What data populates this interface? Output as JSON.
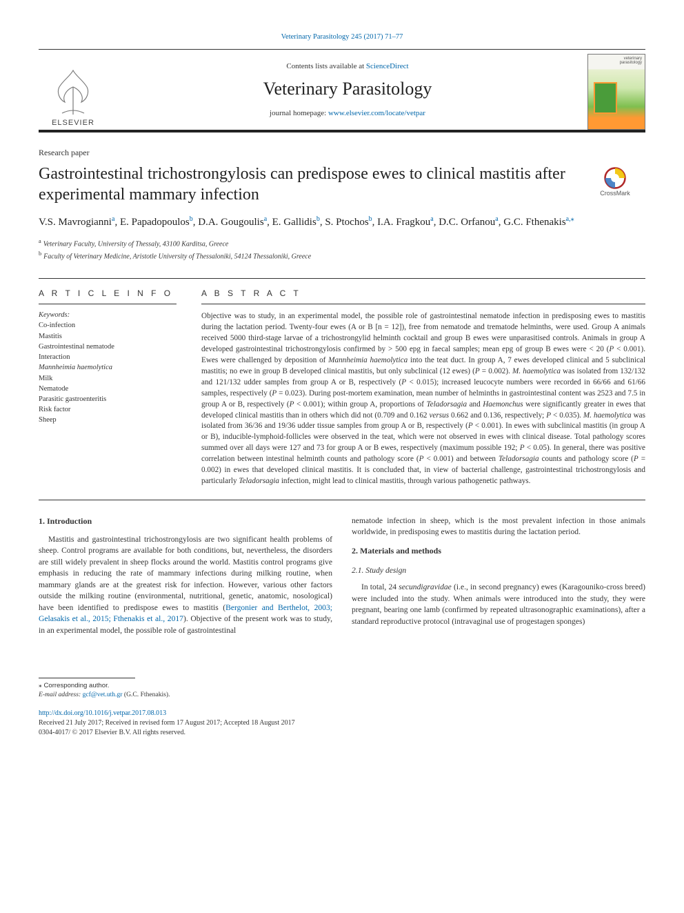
{
  "header": {
    "top_link_text": "Veterinary Parasitology 245 (2017) 71–77",
    "top_link_href": "#",
    "contents_prefix": "Contents lists available at ",
    "contents_link": "ScienceDirect",
    "journal_title": "Veterinary Parasitology",
    "homepage_prefix": "journal homepage: ",
    "homepage_link": "www.elsevier.com/locate/vetpar",
    "publisher_name": "ELSEVIER",
    "cover_label_top": "veterinary",
    "cover_label_bottom": "parasitology"
  },
  "paper": {
    "type": "Research paper",
    "title": "Gastrointestinal trichostrongylosis can predispose ewes to clinical mastitis after experimental mammary infection",
    "crossmark_label": "CrossMark",
    "authors_html": "V.S. Mavrogianni<sup><a href=\"#\">a</a></sup>, E. Papadopoulos<sup><a href=\"#\">b</a></sup>, D.A. Gougoulis<sup><a href=\"#\">a</a></sup>, E. Gallidis<sup><a href=\"#\">b</a></sup>, S. Ptochos<sup><a href=\"#\">b</a></sup>, I.A. Fragkou<sup><a href=\"#\">a</a></sup>, D.C. Orfanou<sup><a href=\"#\">a</a></sup>, G.C. Fthenakis<sup><a href=\"#\">a,</a></sup><sup><a href=\"#\">⁎</a></sup>",
    "affiliations": [
      {
        "key": "a",
        "text": "Veterinary Faculty, University of Thessaly, 43100 Karditsa, Greece"
      },
      {
        "key": "b",
        "text": "Faculty of Veterinary Medicine, Aristotle University of Thessaloniki, 54124 Thessaloniki, Greece"
      }
    ]
  },
  "article_info": {
    "head": "A R T I C L E  I N F O",
    "kw_label": "Keywords:",
    "keywords": [
      "Co-infection",
      "Mastitis",
      "Gastrointestinal nematode",
      "Interaction",
      "Mannheimia haemolytica",
      "Milk",
      "Nematode",
      "Parasitic gastroenteritis",
      "Risk factor",
      "Sheep"
    ],
    "italic_keywords": [
      "Mannheimia haemolytica"
    ]
  },
  "abstract": {
    "head": "A B S T R A C T",
    "text": "Objective was to study, in an experimental model, the possible role of gastrointestinal nematode infection in predisposing ewes to mastitis during the lactation period. Twenty-four ewes (A or B [n = 12]), free from nematode and trematode helminths, were used. Group A animals received 5000 third-stage larvae of a trichostrongylid helminth cocktail and group B ewes were unparasitised controls. Animals in group A developed gastrointestinal trichostrongylosis confirmed by > 500 epg in faecal samples; mean epg of group B ewes were < 20 (<em>P</em> < 0.001). Ewes were challenged by deposition of <em>Mannheimia haemolytica</em> into the teat duct. In group A, 7 ewes developed clinical and 5 subclinical mastitis; no ewe in group B developed clinical mastitis, but only subclinical (12 ewes) (<em>P</em> = 0.002). <em>M. haemolytica</em> was isolated from 132/132 and 121/132 udder samples from group A or B, respectively (<em>P</em> < 0.015); increased leucocyte numbers were recorded in 66/66 and 61/66 samples, respectively (<em>P</em> = 0.023). During post-mortem examination, mean number of helminths in gastrointestinal content was 2523 and 7.5 in group A or B, respectively (<em>P</em> < 0.001); within group A, proportions of <em>Teladorsagia</em> and <em>Haemonchus</em> were significantly greater in ewes that developed clinical mastitis than in others which did not (0.709 and 0.162 <em>versus</em> 0.662 and 0.136, respectively; <em>P</em> < 0.035). <em>M. haemolytica</em> was isolated from 36/36 and 19/36 udder tissue samples from group A or B, respectively (<em>P</em> < 0.001). In ewes with subclinical mastitis (in group A or B), inducible-lymphoid-follicles were observed in the teat, which were not observed in ewes with clinical disease. Total pathology scores summed over all days were 127 and 73 for group A or B ewes, respectively (maximum possible 192; <em>P</em> < 0.05). In general, there was positive correlation between intestinal helminth counts and pathology score (<em>P</em> < 0.001) and between <em>Teladorsagia</em> counts and pathology score (<em>P</em> = 0.002) in ewes that developed clinical mastitis. It is concluded that, in view of bacterial challenge, gastrointestinal trichostrongylosis and particularly <em>Teladorsagia</em> infection, might lead to clinical mastitis, through various pathogenetic pathways."
  },
  "body": {
    "sec1_head": "1. Introduction",
    "sec1_p1": "Mastitis and gastrointestinal trichostrongylosis are two significant health problems of sheep. Control programs are available for both conditions, but, nevertheless, the disorders are still widely prevalent in sheep flocks around the world. Mastitis control programs give emphasis in reducing the rate of mammary infections during milking routine, when mammary glands are at the greatest risk for infection. However, various other factors outside the milking routine (environmental, nutritional, genetic, anatomic, nosological) have been identified to predispose ewes to mastitis (<a href=\"#\">Bergonier and Berthelot, 2003; Gelasakis et al., 2015; Fthenakis et al., 2017</a>). Objective of the present work was to study, in an experimental model, the possible role of gastrointestinal",
    "sec1_p1_cont": "nematode infection in sheep, which is the most prevalent infection in those animals worldwide, in predisposing ewes to mastitis during the lactation period.",
    "sec2_head": "2. Materials and methods",
    "sec2_1_head": "2.1. Study design",
    "sec2_1_p1": "In total, 24 <em>secundigravidae</em> (i.e., in second pregnancy) ewes (Karagouniko-cross breed) were included into the study. When animals were introduced into the study, they were pregnant, bearing one lamb (confirmed by repeated ultrasonographic examinations), after a standard reproductive protocol (intravaginal use of progestagen sponges)"
  },
  "footer": {
    "corr": "⁎ Corresponding author.",
    "email_label": "E-mail address:",
    "email": "gcf@vet.uth.gr",
    "email_paren": "(G.C. Fthenakis).",
    "doi": "http://dx.doi.org/10.1016/j.vetpar.2017.08.013",
    "received": "Received 21 July 2017; Received in revised form 17 August 2017; Accepted 18 August 2017",
    "copyright": "0304-4017/ © 2017 Elsevier B.V. All rights reserved."
  },
  "colors": {
    "link": "#0066aa",
    "text": "#333333",
    "rule": "#333333"
  }
}
